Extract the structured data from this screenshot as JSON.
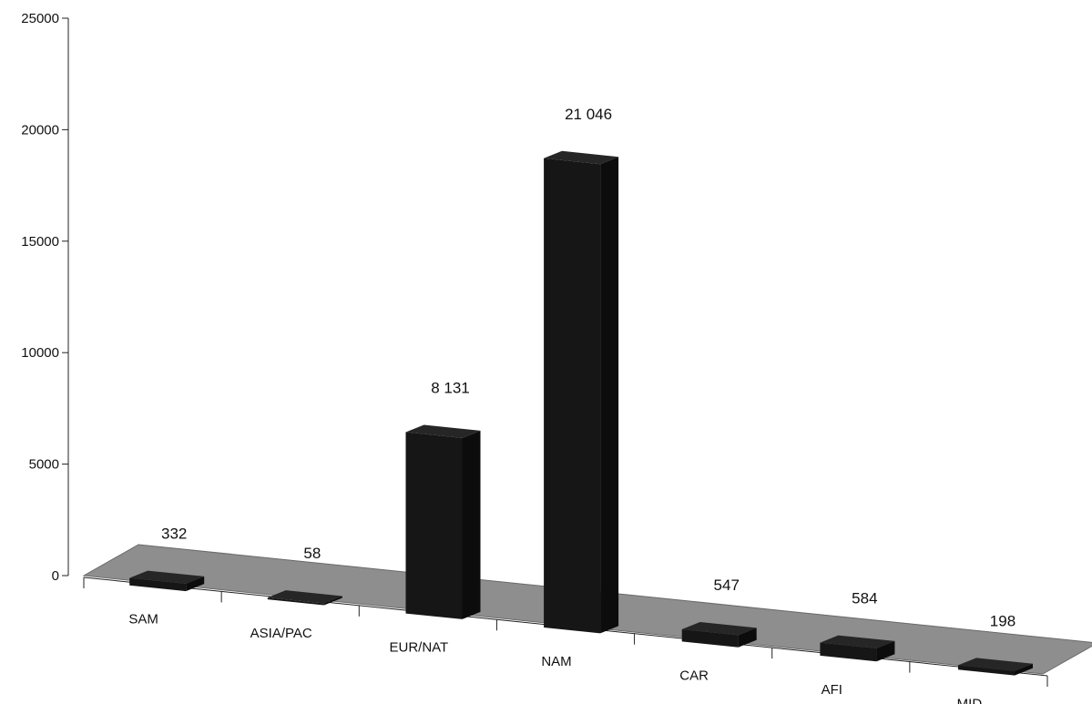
{
  "chart_data": {
    "type": "bar",
    "title": "",
    "xlabel": "",
    "ylabel": "",
    "categories": [
      "SAM",
      "ASIA/PAC",
      "EUR/NAT",
      "NAM",
      "CAR",
      "AFI",
      "MID"
    ],
    "values": [
      332,
      58,
      8131,
      21046,
      547,
      584,
      198
    ],
    "data_labels": [
      "332",
      "58",
      "8 131",
      "21 046",
      "547",
      "584",
      "198"
    ],
    "ylim": [
      0,
      25000
    ],
    "y_ticks": [
      0,
      5000,
      10000,
      15000,
      20000,
      25000
    ],
    "y_tick_labels": [
      "0",
      "5000",
      "10000",
      "15000",
      "20000",
      "25000"
    ],
    "grid": false,
    "legend": "none",
    "colors": {
      "bar_front": "#161616",
      "bar_side": "#0c0c0c",
      "bar_top": "#262626",
      "floor": "#8e8e8e",
      "floor_edge": "#6a6a6a",
      "axis": "#222222"
    }
  }
}
